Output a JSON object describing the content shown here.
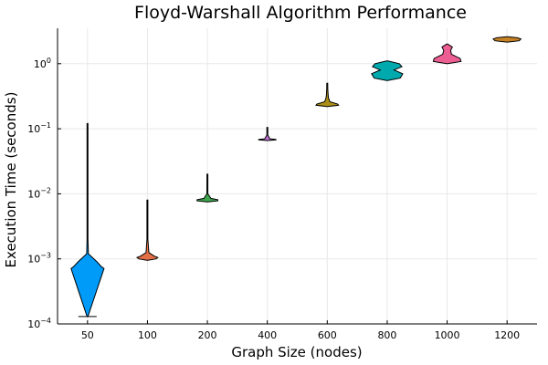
{
  "chart_data": {
    "type": "violin",
    "title": "Floyd-Warshall Algorithm Performance",
    "xlabel": "Graph Size (nodes)",
    "ylabel": "Execution Time (seconds)",
    "y_scale": "log10",
    "ylim": [
      0.0001,
      3.5
    ],
    "y_ticks": [
      {
        "value": 0.0001,
        "base": "10",
        "exp": "−4"
      },
      {
        "value": 0.001,
        "base": "10",
        "exp": "−3"
      },
      {
        "value": 0.01,
        "base": "10",
        "exp": "−2"
      },
      {
        "value": 0.1,
        "base": "10",
        "exp": "−1"
      },
      {
        "value": 1,
        "base": "10",
        "exp": "0"
      }
    ],
    "grid": true,
    "legend": "none",
    "categories": [
      "50",
      "100",
      "200",
      "400",
      "600",
      "800",
      "1000",
      "1200"
    ],
    "violins": [
      {
        "color": "#009af9",
        "min": 0.00013,
        "max": 0.12,
        "profile": [
          [
            0.00013,
            0
          ],
          [
            0.00071,
            0.95
          ],
          [
            0.00076,
            0.8
          ],
          [
            0.0009,
            0.55
          ],
          [
            0.0012,
            0.05
          ],
          [
            0.002,
            0.02
          ],
          [
            0.12,
            0.01
          ]
        ]
      },
      {
        "color": "#e26f46",
        "min": 0.00095,
        "max": 0.008,
        "profile": [
          [
            0.00095,
            0
          ],
          [
            0.001,
            0.5
          ],
          [
            0.00105,
            0.6
          ],
          [
            0.0011,
            0.4
          ],
          [
            0.00125,
            0.08
          ],
          [
            0.002,
            0.02
          ],
          [
            0.008,
            0.01
          ]
        ]
      },
      {
        "color": "#3ea44e",
        "min": 0.0075,
        "max": 0.02,
        "profile": [
          [
            0.0075,
            0
          ],
          [
            0.0078,
            0.6
          ],
          [
            0.0081,
            0.6
          ],
          [
            0.0085,
            0.2
          ],
          [
            0.01,
            0.03
          ],
          [
            0.02,
            0.01
          ]
        ]
      },
      {
        "color": "#c271d2",
        "min": 0.066,
        "max": 0.105,
        "profile": [
          [
            0.066,
            0
          ],
          [
            0.0675,
            0.5
          ],
          [
            0.0685,
            0.5
          ],
          [
            0.07,
            0.15
          ],
          [
            0.08,
            0.02
          ],
          [
            0.105,
            0.01
          ]
        ]
      },
      {
        "color": "#ac8e18",
        "min": 0.22,
        "max": 0.5,
        "profile": [
          [
            0.22,
            0
          ],
          [
            0.23,
            0.65
          ],
          [
            0.24,
            0.6
          ],
          [
            0.26,
            0.15
          ],
          [
            0.3,
            0.07
          ],
          [
            0.33,
            0.05
          ],
          [
            0.4,
            0.03
          ],
          [
            0.5,
            0.01
          ]
        ]
      },
      {
        "color": "#00a9ad",
        "min": 0.55,
        "max": 1.1,
        "profile": [
          [
            0.55,
            0
          ],
          [
            0.6,
            0.75
          ],
          [
            0.7,
            0.9
          ],
          [
            0.8,
            0.4
          ],
          [
            0.9,
            0.85
          ],
          [
            1.0,
            0.7
          ],
          [
            1.1,
            0
          ]
        ]
      },
      {
        "color": "#ed5e93",
        "min": 1.0,
        "max": 2.0,
        "profile": [
          [
            1.0,
            0
          ],
          [
            1.08,
            0.8
          ],
          [
            1.2,
            0.75
          ],
          [
            1.4,
            0.25
          ],
          [
            1.6,
            0.2
          ],
          [
            1.8,
            0.3
          ],
          [
            2.0,
            0
          ]
        ]
      },
      {
        "color": "#c68225",
        "min": 2.15,
        "max": 2.6,
        "profile": [
          [
            2.15,
            0
          ],
          [
            2.25,
            0.7
          ],
          [
            2.4,
            0.8
          ],
          [
            2.5,
            0.6
          ],
          [
            2.6,
            0
          ]
        ]
      }
    ]
  }
}
